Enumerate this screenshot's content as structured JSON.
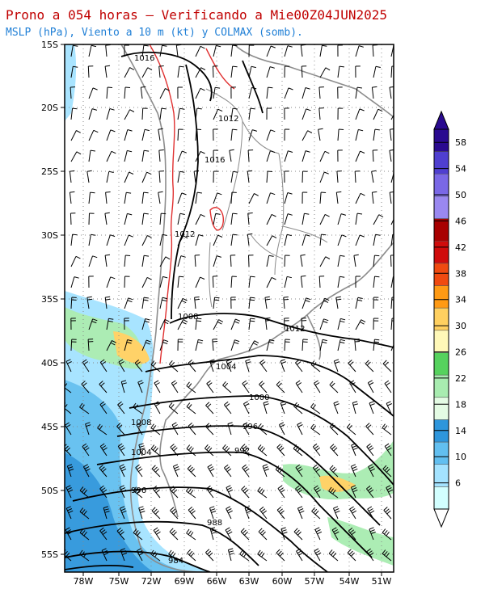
{
  "title": {
    "line1": "Prono a 054 horas — Verificando a Mie00Z04JUN2025",
    "line2": "MSLP (hPa), Viento a 10 m (kt) y COLMAX (somb)."
  },
  "map": {
    "lat_labels": [
      "15S",
      "20S",
      "25S",
      "30S",
      "35S",
      "40S",
      "45S",
      "50S",
      "55S"
    ],
    "lon_labels": [
      "78W",
      "75W",
      "72W",
      "69W",
      "66W",
      "63W",
      "60W",
      "57W",
      "54W",
      "51W"
    ],
    "isobar_labels": [
      {
        "text": "1016"
      },
      {
        "text": "1012"
      },
      {
        "text": "1016"
      },
      {
        "text": "1012"
      },
      {
        "text": "1008"
      },
      {
        "text": "1012"
      },
      {
        "text": "1004"
      },
      {
        "text": "1000"
      },
      {
        "text": "996"
      },
      {
        "text": "992"
      },
      {
        "text": "1008"
      },
      {
        "text": "1004"
      },
      {
        "text": "996"
      },
      {
        "text": "988"
      },
      {
        "text": "984"
      }
    ]
  },
  "colorbar": {
    "ticks": [
      "6",
      "10",
      "14",
      "18",
      "22",
      "26",
      "30",
      "34",
      "38",
      "42",
      "46",
      "50",
      "54",
      "58"
    ],
    "colors": [
      "#d2ffff",
      "#a4e3ff",
      "#62bff0",
      "#2e96dc",
      "#e4fbe4",
      "#a8ecb0",
      "#56d25e",
      "#fff8b8",
      "#ffd060",
      "#ff9a14",
      "#f04a10",
      "#d00c0c",
      "#a80000",
      "#9a88f0",
      "#7a68e6",
      "#4f3fd0",
      "#2a0a90"
    ]
  }
}
